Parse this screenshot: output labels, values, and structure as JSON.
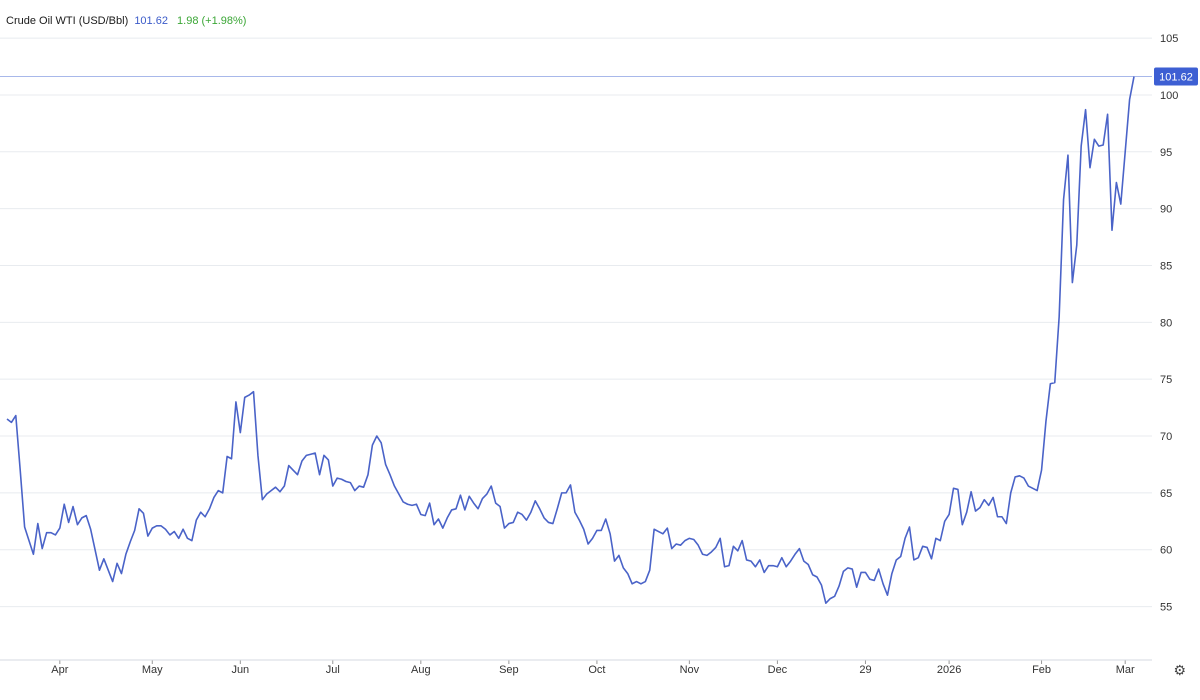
{
  "legend": {
    "name": "Crude Oil WTI (USD/Bbl)",
    "last": "101.62",
    "change": "1.98 (+1.98%)"
  },
  "colors": {
    "line": "#4a63c8",
    "grid": "#e8ebef",
    "price_line": "#a8b8ea",
    "price_tag": "#3d5fd3",
    "change_text": "#3aa635"
  },
  "icons": {
    "settings": "gear-icon"
  },
  "chart_data": {
    "type": "line",
    "title": "Crude Oil WTI (USD/Bbl)",
    "xlabel": "",
    "ylabel": "",
    "ylim": [
      50.3,
      108
    ],
    "grid": true,
    "y_axis_side": "right",
    "y_ticks": [
      55,
      60,
      65,
      70,
      75,
      80,
      85,
      90,
      95,
      100,
      105
    ],
    "current_price": 101.62,
    "current_price_label": "101.62",
    "x_ticks": [
      {
        "label": "Apr",
        "index": 12
      },
      {
        "label": "May",
        "index": 33
      },
      {
        "label": "Jun",
        "index": 53
      },
      {
        "label": "Jul",
        "index": 74
      },
      {
        "label": "Aug",
        "index": 94
      },
      {
        "label": "Sep",
        "index": 114
      },
      {
        "label": "Oct",
        "index": 134
      },
      {
        "label": "Nov",
        "index": 155
      },
      {
        "label": "Dec",
        "index": 175
      },
      {
        "label": "29",
        "index": 195
      },
      {
        "label": "2026",
        "index": 214
      },
      {
        "label": "Feb",
        "index": 235
      },
      {
        "label": "Mar",
        "index": 254
      }
    ],
    "series": [
      {
        "values": [
          71.5,
          71.2,
          71.8,
          67.0,
          62.0,
          60.8,
          59.6,
          62.3,
          60.1,
          61.5,
          61.5,
          61.3,
          61.9,
          64.0,
          62.4,
          63.8,
          62.2,
          62.8,
          63.0,
          61.8,
          60.0,
          58.2,
          59.2,
          58.2,
          57.2,
          58.8,
          57.9,
          59.6,
          60.7,
          61.7,
          63.6,
          63.2,
          61.2,
          61.9,
          62.1,
          62.1,
          61.8,
          61.3,
          61.6,
          61.0,
          61.8,
          61.0,
          60.8,
          62.6,
          63.3,
          62.9,
          63.6,
          64.6,
          65.2,
          65.0,
          68.2,
          68.0,
          73.0,
          70.3,
          73.4,
          73.6,
          73.9,
          68.3,
          64.4,
          64.9,
          65.2,
          65.5,
          65.1,
          65.6,
          67.4,
          67.0,
          66.6,
          67.8,
          68.3,
          68.4,
          68.5,
          66.6,
          68.3,
          67.9,
          65.6,
          66.3,
          66.2,
          66.0,
          65.9,
          65.2,
          65.6,
          65.5,
          66.6,
          69.2,
          70.0,
          69.4,
          67.5,
          66.6,
          65.6,
          64.9,
          64.2,
          64.0,
          63.9,
          64.0,
          63.1,
          63.0,
          64.1,
          62.2,
          62.7,
          61.9,
          62.8,
          63.5,
          63.6,
          64.8,
          63.5,
          64.7,
          64.1,
          63.6,
          64.5,
          64.9,
          65.6,
          64.1,
          63.8,
          61.9,
          62.3,
          62.4,
          63.3,
          63.1,
          62.6,
          63.3,
          64.3,
          63.6,
          62.8,
          62.4,
          62.3,
          63.6,
          65.0,
          65.0,
          65.7,
          63.3,
          62.6,
          61.8,
          60.5,
          61.0,
          61.7,
          61.7,
          62.7,
          61.4,
          59.0,
          59.5,
          58.4,
          57.9,
          57.0,
          57.2,
          57.0,
          57.2,
          58.2,
          61.8,
          61.6,
          61.4,
          61.9,
          60.1,
          60.5,
          60.4,
          60.8,
          61.0,
          60.9,
          60.4,
          59.6,
          59.5,
          59.8,
          60.2,
          61.0,
          58.5,
          58.6,
          60.3,
          59.9,
          60.8,
          59.1,
          59.0,
          58.5,
          59.1,
          58.0,
          58.6,
          58.6,
          58.5,
          59.3,
          58.5,
          59.0,
          59.6,
          60.1,
          59.0,
          58.7,
          57.8,
          57.6,
          56.9,
          55.3,
          55.7,
          55.9,
          56.8,
          58.1,
          58.4,
          58.3,
          56.7,
          58.0,
          58.0,
          57.4,
          57.3,
          58.3,
          57.0,
          56.0,
          57.9,
          59.1,
          59.4,
          61.0,
          62.0,
          59.1,
          59.3,
          60.3,
          60.2,
          59.2,
          61.0,
          60.8,
          62.5,
          63.1,
          65.4,
          65.3,
          62.2,
          63.3,
          65.1,
          63.4,
          63.7,
          64.4,
          63.9,
          64.6,
          62.9,
          62.9,
          62.3,
          65.0,
          66.4,
          66.5,
          66.3,
          65.6,
          65.4,
          65.2,
          67.0,
          71.3,
          74.6,
          74.7,
          80.5,
          90.8,
          94.7,
          83.5,
          86.8,
          95.5,
          98.7,
          93.6,
          96.1,
          95.5,
          95.6,
          98.3,
          88.1,
          92.3,
          90.4,
          95.0,
          99.6,
          101.62
        ]
      }
    ]
  }
}
